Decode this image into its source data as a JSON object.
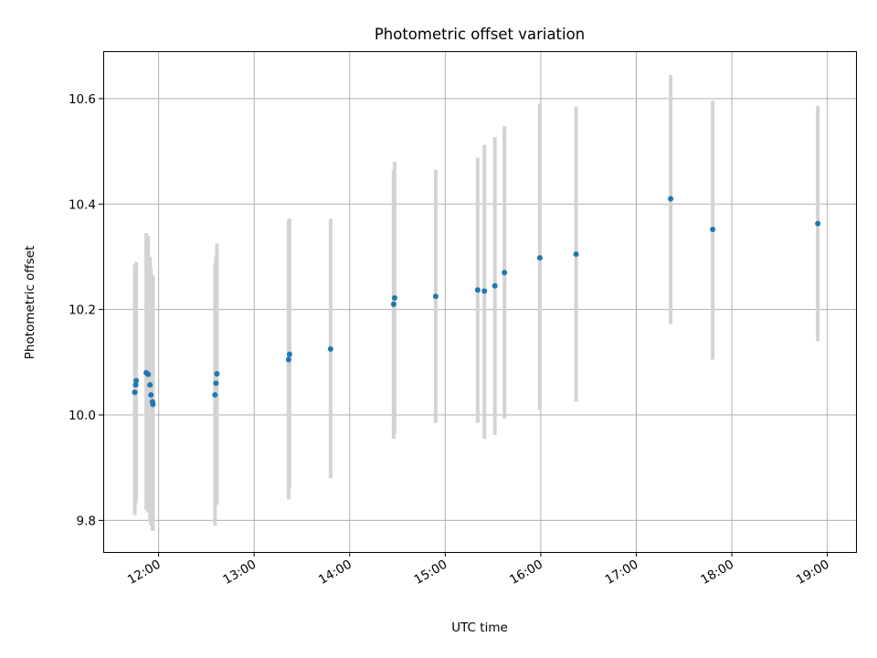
{
  "chart_data": {
    "type": "scatter",
    "title": "Photometric offset variation",
    "xlabel": "UTC time",
    "ylabel": "Photometric offset",
    "grid": true,
    "x_unit": "UTC hour of day",
    "xlim": [
      11.42,
      19.3
    ],
    "ylim": [
      9.74,
      10.69
    ],
    "xticks": [
      12,
      13,
      14,
      15,
      16,
      17,
      18,
      19
    ],
    "xtick_labels": [
      "12:00",
      "13:00",
      "14:00",
      "15:00",
      "16:00",
      "17:00",
      "18:00",
      "19:00"
    ],
    "yticks": [
      9.8,
      10.0,
      10.2,
      10.4,
      10.6
    ],
    "ytick_labels": [
      "9.8",
      "10.0",
      "10.2",
      "10.4",
      "10.6"
    ],
    "colors": {
      "points": "#1f77b4",
      "errorbars": "#d3d3d3",
      "grid": "#b0b0b0"
    },
    "points": [
      {
        "x": 11.75,
        "y": 10.043,
        "ylo": 9.81,
        "yhi": 10.285
      },
      {
        "x": 11.76,
        "y": 10.057,
        "ylo": 9.83,
        "yhi": 10.28
      },
      {
        "x": 11.765,
        "y": 10.065,
        "ylo": 9.84,
        "yhi": 10.29
      },
      {
        "x": 11.87,
        "y": 10.08,
        "ylo": 9.82,
        "yhi": 10.345
      },
      {
        "x": 11.89,
        "y": 10.077,
        "ylo": 9.815,
        "yhi": 10.34
      },
      {
        "x": 11.91,
        "y": 10.057,
        "ylo": 9.8,
        "yhi": 10.3
      },
      {
        "x": 11.92,
        "y": 10.038,
        "ylo": 9.79,
        "yhi": 10.28
      },
      {
        "x": 11.935,
        "y": 10.025,
        "ylo": 9.78,
        "yhi": 10.265
      },
      {
        "x": 11.94,
        "y": 10.02,
        "ylo": 9.78,
        "yhi": 10.262
      },
      {
        "x": 12.59,
        "y": 10.038,
        "ylo": 9.79,
        "yhi": 10.285
      },
      {
        "x": 12.6,
        "y": 10.06,
        "ylo": 9.83,
        "yhi": 10.3
      },
      {
        "x": 12.61,
        "y": 10.078,
        "ylo": 9.83,
        "yhi": 10.325
      },
      {
        "x": 13.36,
        "y": 10.105,
        "ylo": 9.84,
        "yhi": 10.37
      },
      {
        "x": 13.37,
        "y": 10.115,
        "ylo": 9.86,
        "yhi": 10.372
      },
      {
        "x": 13.8,
        "y": 10.125,
        "ylo": 9.88,
        "yhi": 10.372
      },
      {
        "x": 14.46,
        "y": 10.21,
        "ylo": 9.955,
        "yhi": 10.465
      },
      {
        "x": 14.47,
        "y": 10.222,
        "ylo": 9.965,
        "yhi": 10.48
      },
      {
        "x": 14.9,
        "y": 10.225,
        "ylo": 9.985,
        "yhi": 10.465
      },
      {
        "x": 15.34,
        "y": 10.237,
        "ylo": 9.985,
        "yhi": 10.488
      },
      {
        "x": 15.41,
        "y": 10.235,
        "ylo": 9.955,
        "yhi": 10.512
      },
      {
        "x": 15.52,
        "y": 10.245,
        "ylo": 9.962,
        "yhi": 10.527
      },
      {
        "x": 15.62,
        "y": 10.27,
        "ylo": 9.993,
        "yhi": 10.548
      },
      {
        "x": 15.99,
        "y": 10.298,
        "ylo": 10.01,
        "yhi": 10.59
      },
      {
        "x": 16.37,
        "y": 10.305,
        "ylo": 10.025,
        "yhi": 10.585
      },
      {
        "x": 17.36,
        "y": 10.41,
        "ylo": 10.172,
        "yhi": 10.645
      },
      {
        "x": 17.8,
        "y": 10.352,
        "ylo": 10.105,
        "yhi": 10.596
      },
      {
        "x": 18.9,
        "y": 10.363,
        "ylo": 10.14,
        "yhi": 10.586
      }
    ]
  }
}
